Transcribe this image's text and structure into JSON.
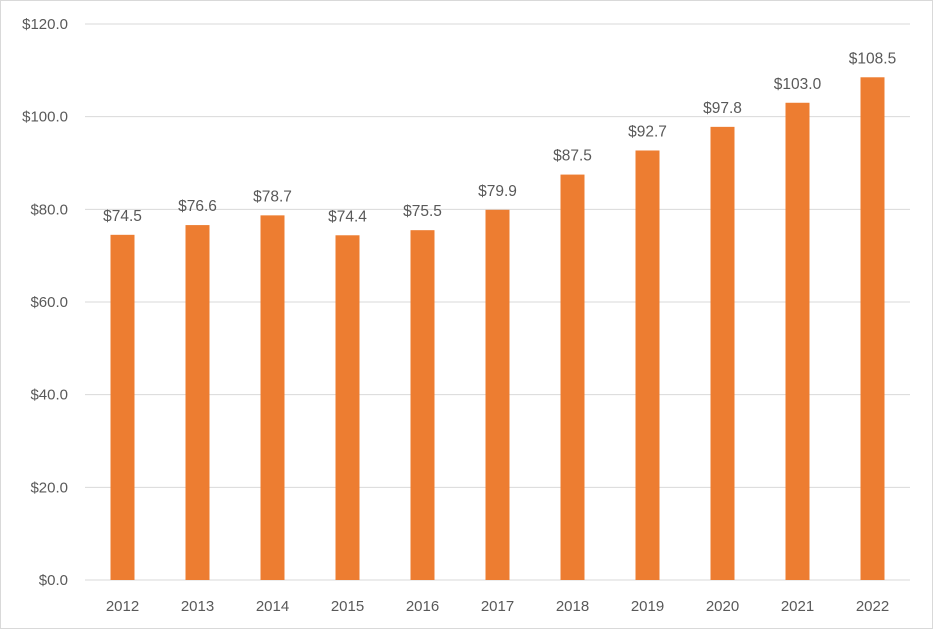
{
  "chart_data": {
    "type": "bar",
    "categories": [
      "2012",
      "2013",
      "2014",
      "2015",
      "2016",
      "2017",
      "2018",
      "2019",
      "2020",
      "2021",
      "2022"
    ],
    "values": [
      74.5,
      76.6,
      78.7,
      74.4,
      75.5,
      79.9,
      87.5,
      92.7,
      97.8,
      103.0,
      108.5
    ],
    "data_labels": [
      "$74.5",
      "$76.6",
      "$78.7",
      "$74.4",
      "$75.5",
      "$79.9",
      "$87.5",
      "$92.7",
      "$97.8",
      "$103.0",
      "$108.5"
    ],
    "y_ticks": [
      0,
      20,
      40,
      60,
      80,
      100,
      120
    ],
    "y_tick_labels": [
      "$0.0",
      "$20.0",
      "$40.0",
      "$60.0",
      "$80.0",
      "$100.0",
      "$120.0"
    ],
    "ylim": [
      0,
      120
    ],
    "grid": true,
    "legend": "none",
    "colors": {
      "bar": "#ed7d31",
      "grid": "#d9d9d9",
      "text": "#595959"
    }
  }
}
